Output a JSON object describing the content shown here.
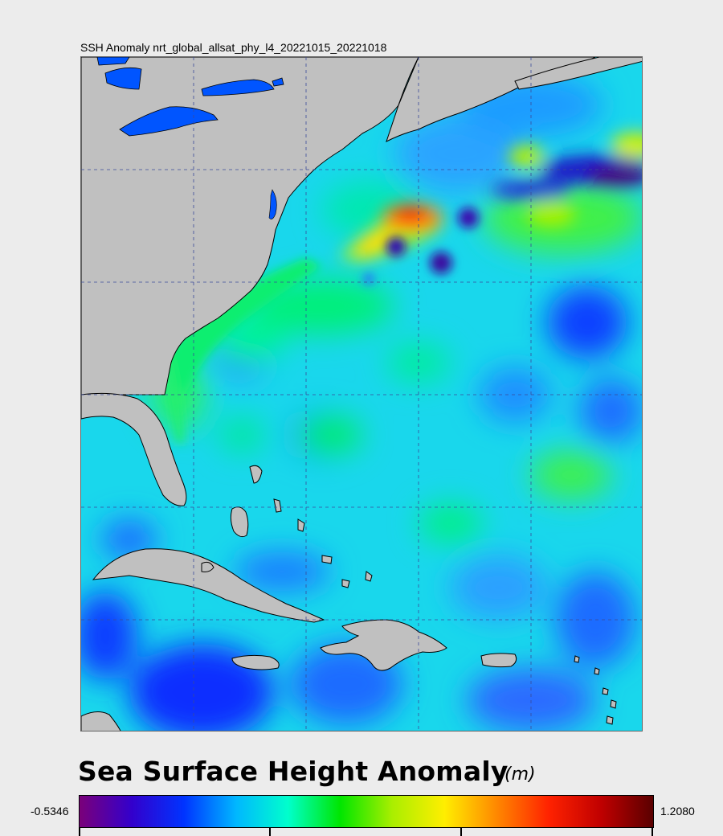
{
  "map": {
    "title": "SSH Anomaly nrt_global_allsat_phy_l4_20221015_20221018",
    "ocean_color": "#19d7ec",
    "land_color": "#c0c0c0",
    "lake_color": "#0055ff",
    "gridline_color": "#3a4a9a"
  },
  "legend": {
    "title": "Sea Surface Height Anomaly",
    "unit": "(m)",
    "min_label": "-0.5346",
    "max_label": "1.2080",
    "colormap": [
      "#7a007a",
      "#3300cc",
      "#0033ff",
      "#00b7ff",
      "#00ffcc",
      "#00e600",
      "#aaee00",
      "#ffee00",
      "#ff8800",
      "#ff2200",
      "#c00000",
      "#5a0000"
    ]
  }
}
